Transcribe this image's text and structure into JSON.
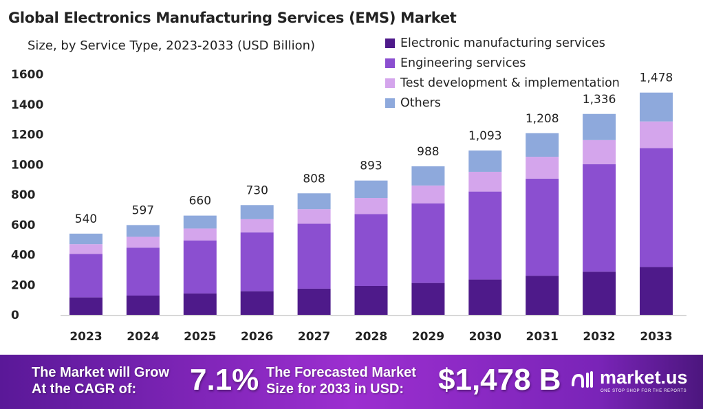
{
  "chart_data": {
    "type": "bar",
    "stacked": true,
    "title": "Global Electronics Manufacturing Services (EMS) Market",
    "subtitle": "Size, by Service Type, 2023-2033 (USD Billion)",
    "categories": [
      "2023",
      "2024",
      "2025",
      "2026",
      "2027",
      "2028",
      "2029",
      "2030",
      "2031",
      "2032",
      "2033"
    ],
    "totals": [
      "540",
      "597",
      "660",
      "730",
      "808",
      "893",
      "988",
      "1,093",
      "1,208",
      "1,336",
      "1,478"
    ],
    "series": [
      {
        "name": "Electronic manufacturing services",
        "color": "#4e1a8a",
        "values": [
          116,
          128,
          142,
          157,
          174,
          192,
          212,
          235,
          260,
          287,
          318
        ]
      },
      {
        "name": "Engineering services",
        "color": "#8b4fd0",
        "values": [
          289,
          319,
          353,
          391,
          432,
          478,
          529,
          585,
          646,
          715,
          791
        ]
      },
      {
        "name": "Test development & implementation",
        "color": "#d4a5ec",
        "values": [
          65,
          72,
          79,
          88,
          97,
          107,
          119,
          131,
          145,
          160,
          177
        ]
      },
      {
        "name": "Others",
        "color": "#8ea9dc",
        "values": [
          70,
          78,
          86,
          94,
          105,
          116,
          128,
          142,
          157,
          174,
          192
        ]
      }
    ],
    "ylim": [
      0,
      1600
    ],
    "yticks": [
      "0",
      "200",
      "400",
      "600",
      "800",
      "1000",
      "1200",
      "1400",
      "1600"
    ],
    "grid": false,
    "legend_position": "top-right"
  },
  "banner": {
    "cagr_label_1": "The Market will Grow",
    "cagr_label_2": "At the CAGR of:",
    "cagr_value": "7.1%",
    "forecast_label_1": "The Forecasted Market",
    "forecast_label_2": "Size for 2033 in USD:",
    "forecast_value": "$1,478 B",
    "brand": "market.us",
    "tagline": "ONE STOP SHOP FOR THE REPORTS"
  }
}
